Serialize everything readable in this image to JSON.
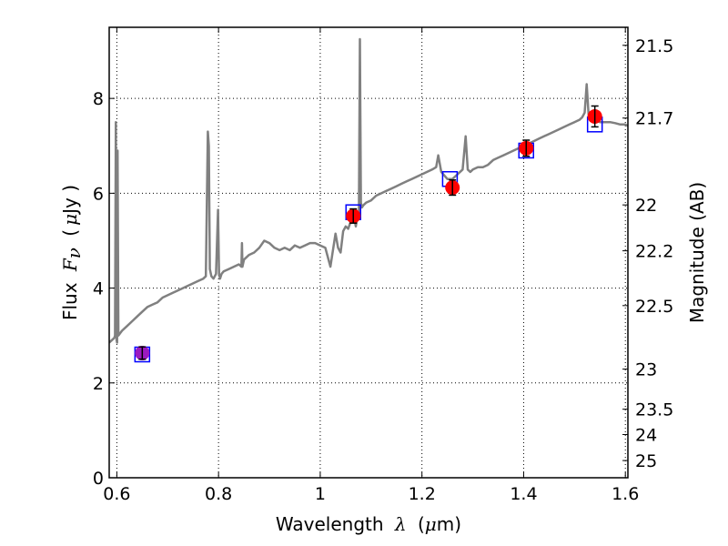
{
  "chart_data": {
    "type": "line",
    "x_axis": {
      "label_prefix": "Wavelength",
      "label_symbol": "λ",
      "label_unit_open": "(",
      "label_unit_symbol": "μ",
      "label_unit_rest": "m)",
      "range": [
        0.585,
        1.605
      ],
      "ticks": [
        0.6,
        0.8,
        1.0,
        1.2,
        1.4,
        1.6
      ],
      "tick_labels": [
        "0.6",
        "0.8",
        "1",
        "1.2",
        "1.4",
        "1.6"
      ]
    },
    "y_axis": {
      "label_prefix": "Flux",
      "label_symbol": "F",
      "label_subscript": "ν",
      "label_unit_open": "(",
      "label_unit_symbol": "μ",
      "label_unit_rest": "Jy )",
      "range": [
        0,
        9.5
      ],
      "ticks": [
        0,
        2,
        4,
        6,
        8
      ],
      "tick_labels": [
        "0",
        "2",
        "4",
        "6",
        "8"
      ]
    },
    "y2_axis": {
      "label": "Magnitude (AB)",
      "ticks": [
        21.5,
        21.7,
        22,
        22.2,
        22.5,
        23,
        23.5,
        24,
        25
      ],
      "tick_labels": [
        "21.5",
        "21.7",
        "22",
        "22.2",
        "22.5",
        "23",
        "23.5",
        "24",
        "25"
      ]
    },
    "grid": true,
    "colors": {
      "spectrum": "#808080",
      "photometry": "#ff0000",
      "photometry_first": "#9b1bbf",
      "model_box": "#0000ff",
      "error_bar": "#000000",
      "grid": "#000000"
    },
    "spectrum": {
      "x": [
        0.585,
        0.59,
        0.595,
        0.5965,
        0.598,
        0.5995,
        0.6005,
        0.6015,
        0.603,
        0.61,
        0.62,
        0.63,
        0.64,
        0.65,
        0.66,
        0.67,
        0.68,
        0.69,
        0.7,
        0.71,
        0.72,
        0.73,
        0.74,
        0.75,
        0.76,
        0.77,
        0.775,
        0.779,
        0.781,
        0.783,
        0.786,
        0.79,
        0.795,
        0.799,
        0.801,
        0.803,
        0.806,
        0.81,
        0.82,
        0.83,
        0.84,
        0.845,
        0.846,
        0.847,
        0.85,
        0.86,
        0.87,
        0.88,
        0.89,
        0.9,
        0.91,
        0.92,
        0.93,
        0.94,
        0.95,
        0.96,
        0.97,
        0.98,
        0.99,
        1.0,
        1.01,
        1.02,
        1.03,
        1.035,
        1.04,
        1.045,
        1.05,
        1.055,
        1.06,
        1.065,
        1.07,
        1.073,
        1.076,
        1.078,
        1.08,
        1.082,
        1.085,
        1.09,
        1.1,
        1.11,
        1.12,
        1.13,
        1.14,
        1.15,
        1.16,
        1.17,
        1.18,
        1.19,
        1.2,
        1.21,
        1.22,
        1.228,
        1.232,
        1.238,
        1.25,
        1.26,
        1.27,
        1.28,
        1.286,
        1.29,
        1.295,
        1.3,
        1.31,
        1.32,
        1.33,
        1.34,
        1.35,
        1.36,
        1.37,
        1.38,
        1.39,
        1.4,
        1.41,
        1.42,
        1.43,
        1.44,
        1.45,
        1.46,
        1.47,
        1.48,
        1.49,
        1.5,
        1.51,
        1.515,
        1.52,
        1.524,
        1.528,
        1.532,
        1.54,
        1.55,
        1.56,
        1.57,
        1.58,
        1.59,
        1.6,
        1.605
      ],
      "y": [
        2.85,
        2.9,
        2.95,
        3.0,
        7.5,
        2.9,
        2.85,
        6.9,
        3.0,
        3.1,
        3.2,
        3.3,
        3.4,
        3.5,
        3.6,
        3.65,
        3.7,
        3.8,
        3.85,
        3.9,
        3.95,
        4.0,
        4.05,
        4.1,
        4.15,
        4.2,
        4.25,
        7.3,
        7.0,
        4.4,
        4.25,
        4.2,
        4.3,
        5.65,
        4.3,
        4.2,
        4.3,
        4.35,
        4.4,
        4.45,
        4.5,
        4.45,
        4.95,
        4.45,
        4.6,
        4.7,
        4.75,
        4.85,
        5.0,
        4.95,
        4.85,
        4.8,
        4.85,
        4.8,
        4.9,
        4.85,
        4.9,
        4.95,
        4.95,
        4.9,
        4.85,
        4.45,
        5.15,
        4.85,
        4.75,
        5.2,
        5.3,
        5.25,
        5.4,
        5.6,
        5.3,
        5.5,
        5.55,
        9.25,
        5.8,
        5.7,
        5.75,
        5.8,
        5.85,
        5.95,
        6.0,
        6.05,
        6.1,
        6.15,
        6.2,
        6.25,
        6.3,
        6.35,
        6.4,
        6.45,
        6.5,
        6.55,
        6.8,
        6.45,
        6.3,
        6.3,
        6.4,
        6.5,
        7.2,
        6.5,
        6.45,
        6.5,
        6.55,
        6.55,
        6.6,
        6.7,
        6.75,
        6.8,
        6.85,
        6.9,
        6.95,
        7.0,
        7.05,
        7.1,
        7.15,
        7.2,
        7.25,
        7.3,
        7.35,
        7.4,
        7.45,
        7.5,
        7.55,
        7.6,
        7.7,
        8.3,
        7.6,
        7.55,
        7.55,
        7.5,
        7.5,
        7.5,
        7.48,
        7.45,
        7.45,
        7.42
      ]
    },
    "photometry": [
      {
        "x": 0.65,
        "y": 2.63,
        "err": 0.13
      },
      {
        "x": 1.065,
        "y": 5.52,
        "err": 0.15
      },
      {
        "x": 1.26,
        "y": 6.12,
        "err": 0.16
      },
      {
        "x": 1.405,
        "y": 6.95,
        "err": 0.17
      },
      {
        "x": 1.54,
        "y": 7.62,
        "err": 0.22
      }
    ],
    "model_boxes": [
      {
        "x": 0.65,
        "y": 2.6
      },
      {
        "x": 1.065,
        "y": 5.6
      },
      {
        "x": 1.255,
        "y": 6.3
      },
      {
        "x": 1.405,
        "y": 6.9
      },
      {
        "x": 1.54,
        "y": 7.45
      }
    ]
  }
}
